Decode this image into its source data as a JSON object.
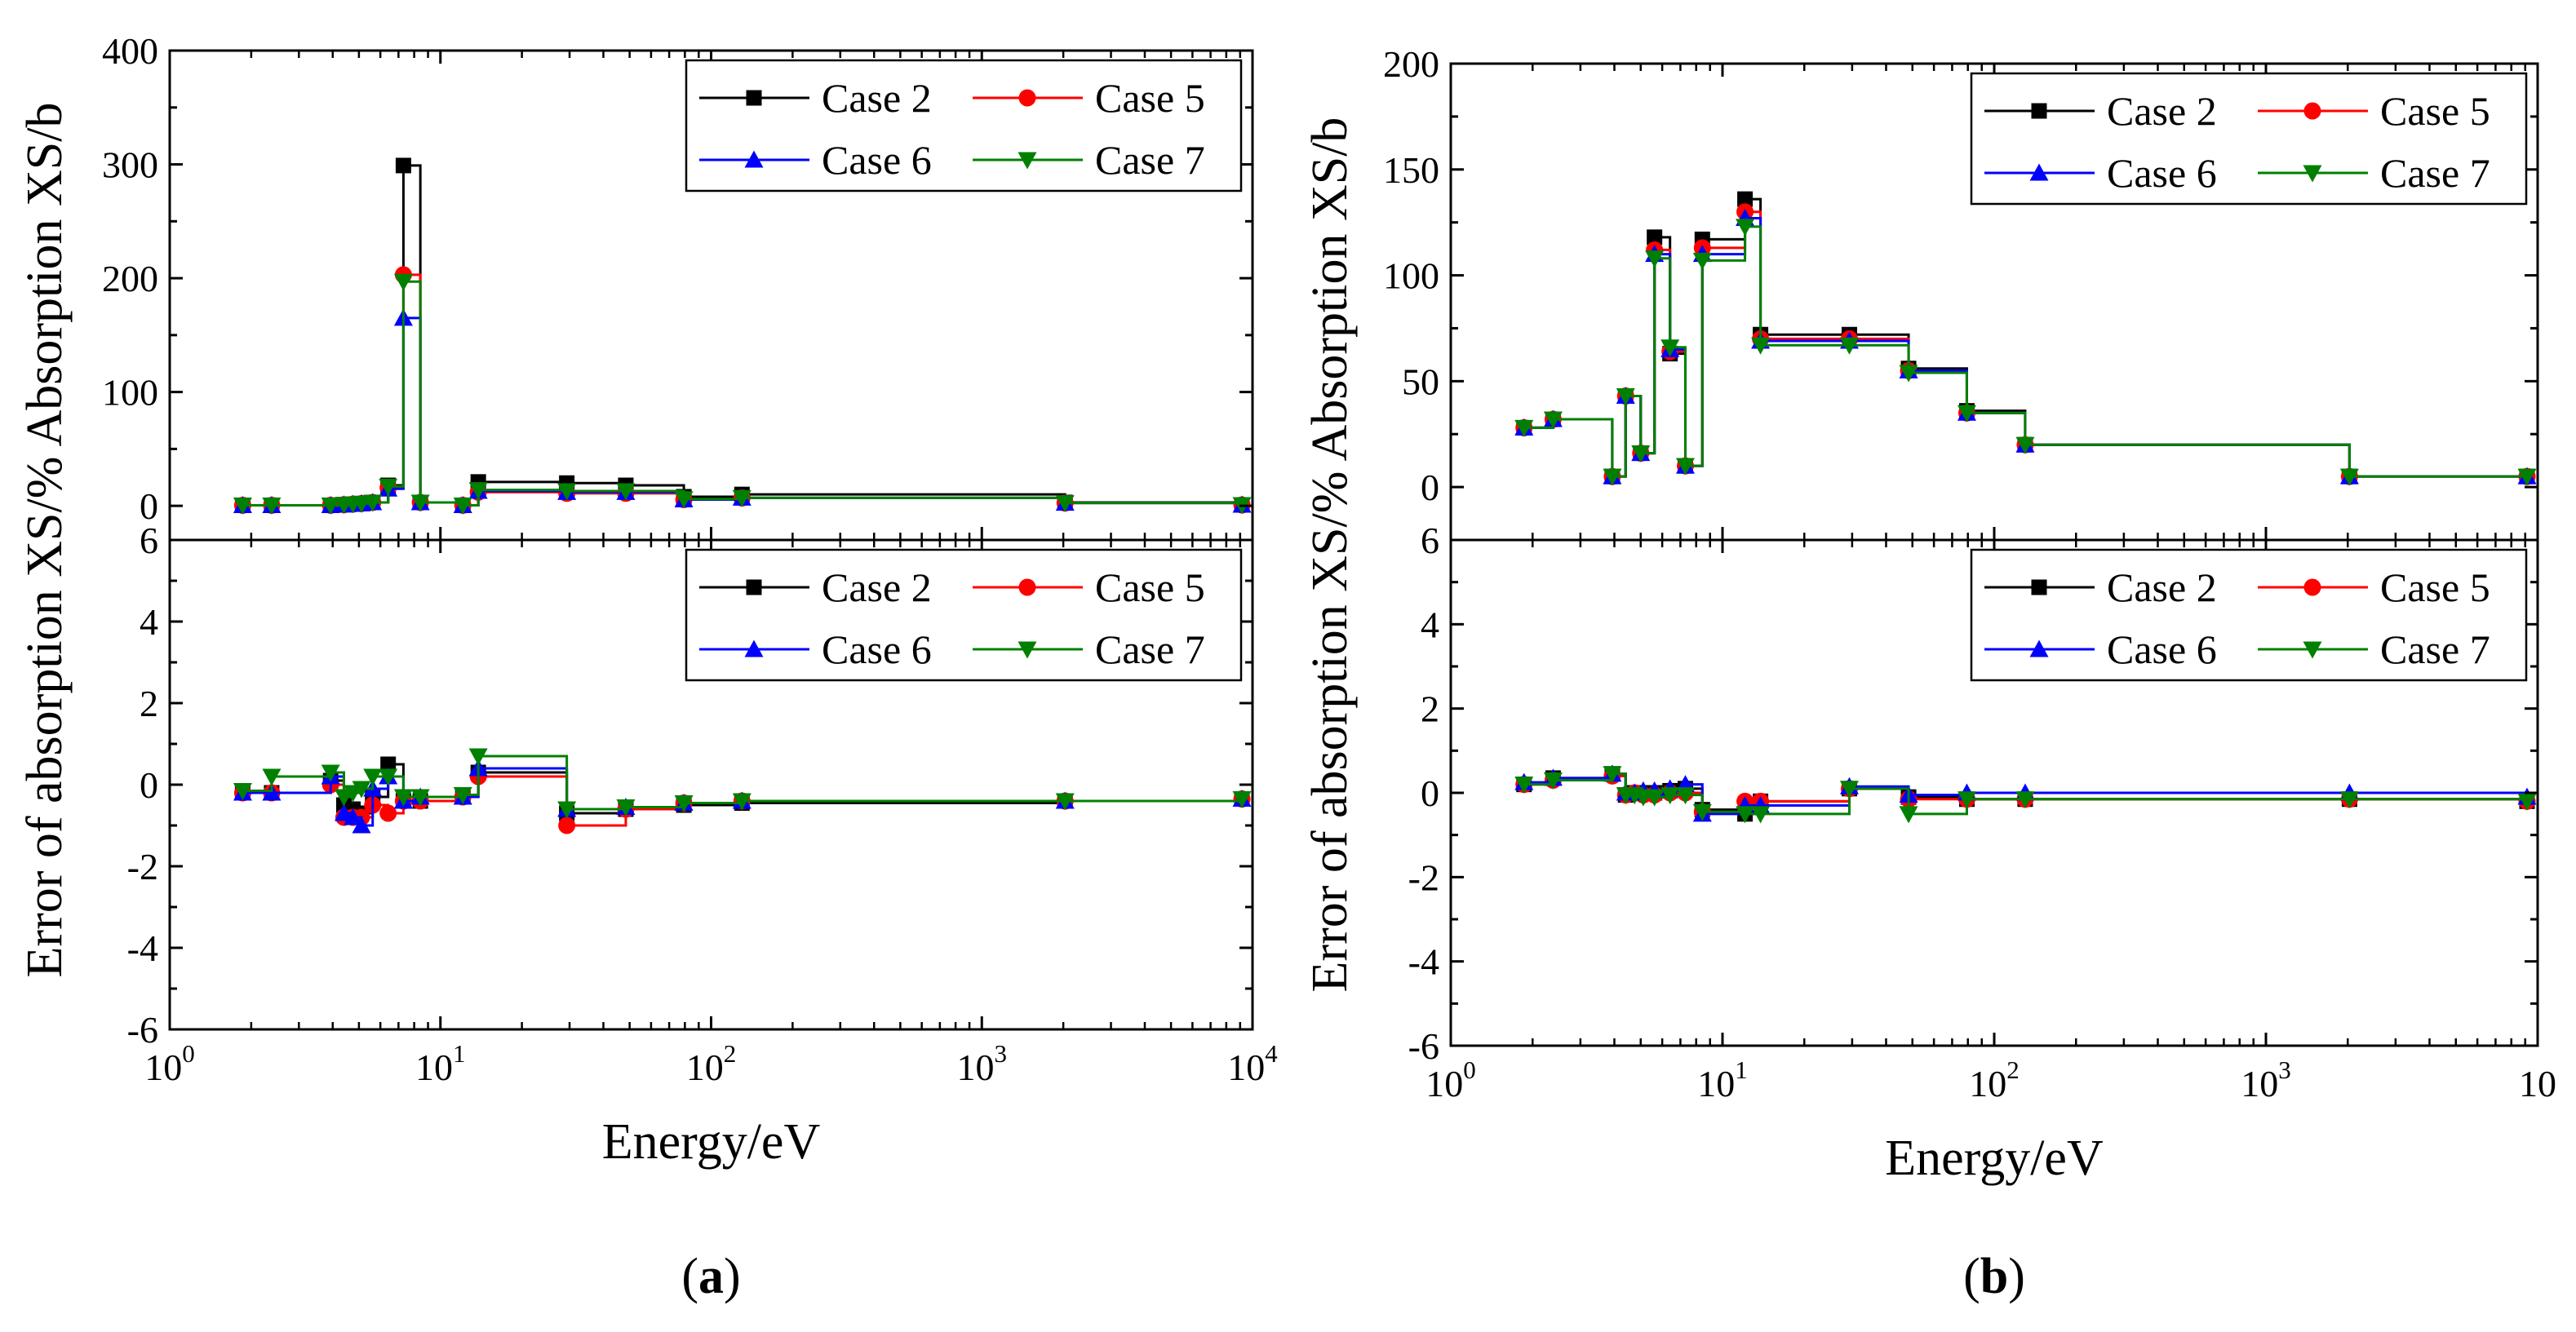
{
  "chart_data": [
    {
      "id": "a",
      "panel_label": "(a)",
      "type": "line",
      "step": "post",
      "xlabel": "Energy/eV",
      "xscale": "log",
      "xlim": [
        1,
        10000
      ],
      "xtick_labels": [
        {
          "base": "10",
          "exp": "0"
        },
        {
          "base": "10",
          "exp": "1"
        },
        {
          "base": "10",
          "exp": "2"
        },
        {
          "base": "10",
          "exp": "3"
        },
        {
          "base": "10",
          "exp": "4"
        }
      ],
      "ylabel": "Error of absorption XS/% Absorption XS/b",
      "subplots": [
        {
          "name": "absorption",
          "ylabel": "Absorption XS/b",
          "ylim": [
            -30,
            400
          ],
          "yticks": [
            0,
            100,
            200,
            300,
            400
          ],
          "legend": "top-right",
          "x": [
            1.86,
            2.38,
            3.93,
            4.4,
            4.75,
            5.11,
            5.62,
            6.41,
            7.3,
            8.43,
            12.1,
            13.8,
            29.3,
            48.4,
            79.3,
            130,
            2030,
            9140
          ],
          "series": [
            {
              "name": "Case 2",
              "values": [
                0.5,
                0.5,
                0.5,
                1.0,
                1.5,
                2.0,
                3.0,
                18.0,
                299.0,
                3.0,
                0.5,
                21.0,
                20.0,
                18.0,
                8.0,
                10.0,
                3.0,
                0.8
              ]
            },
            {
              "name": "Case 5",
              "values": [
                0.5,
                0.5,
                0.5,
                1.0,
                1.5,
                2.0,
                3.0,
                16.0,
                203.0,
                3.0,
                0.5,
                12.0,
                11.0,
                11.0,
                5.5,
                7.0,
                2.5,
                0.8
              ]
            },
            {
              "name": "Case 6",
              "values": [
                0.5,
                0.5,
                0.5,
                1.0,
                1.5,
                2.0,
                3.0,
                15.0,
                165.0,
                3.0,
                0.5,
                13.0,
                12.0,
                12.0,
                5.5,
                7.0,
                2.5,
                0.8
              ]
            },
            {
              "name": "Case 7",
              "values": [
                0.5,
                0.5,
                0.5,
                1.0,
                1.5,
                2.0,
                3.0,
                17.0,
                197.0,
                3.0,
                0.5,
                14.0,
                13.0,
                13.0,
                6.0,
                7.0,
                2.5,
                0.8
              ]
            }
          ]
        },
        {
          "name": "error",
          "ylabel": "Error of absorption XS/%",
          "ylim": [
            -6,
            6
          ],
          "yticks": [
            -6,
            -4,
            -2,
            0,
            2,
            4,
            6
          ],
          "legend": "top-right",
          "x": [
            1.86,
            2.38,
            3.93,
            4.4,
            4.75,
            5.11,
            5.62,
            6.41,
            7.3,
            8.43,
            12.1,
            13.8,
            29.3,
            48.4,
            79.3,
            130,
            2030,
            9140
          ],
          "series": [
            {
              "name": "Case 2",
              "values": [
                -0.2,
                -0.2,
                0.1,
                -0.5,
                -0.6,
                -0.7,
                -0.3,
                0.5,
                -0.4,
                -0.4,
                -0.3,
                0.3,
                -0.7,
                -0.6,
                -0.5,
                -0.45,
                -0.4,
                -0.35
              ]
            },
            {
              "name": "Case 5",
              "values": [
                -0.2,
                -0.2,
                0.0,
                -0.8,
                -0.8,
                -0.8,
                -0.5,
                -0.7,
                -0.4,
                -0.4,
                -0.3,
                0.2,
                -1.0,
                -0.6,
                -0.45,
                -0.4,
                -0.4,
                -0.35
              ]
            },
            {
              "name": "Case 6",
              "values": [
                -0.2,
                -0.2,
                0.2,
                -0.7,
                -0.8,
                -1.0,
                -0.1,
                0.2,
                -0.4,
                -0.3,
                -0.3,
                0.4,
                -0.6,
                -0.55,
                -0.45,
                -0.4,
                -0.4,
                -0.35
              ]
            },
            {
              "name": "Case 7",
              "values": [
                -0.15,
                0.2,
                0.3,
                -0.3,
                -0.2,
                -0.1,
                0.2,
                0.2,
                -0.3,
                -0.3,
                -0.25,
                0.7,
                -0.6,
                -0.55,
                -0.45,
                -0.4,
                -0.4,
                -0.35
              ]
            }
          ]
        }
      ]
    },
    {
      "id": "b",
      "panel_label": "(b)",
      "type": "line",
      "step": "post",
      "xlabel": "Energy/eV",
      "xscale": "log",
      "xlim": [
        1,
        10000
      ],
      "xtick_labels": [
        {
          "base": "10",
          "exp": "0"
        },
        {
          "base": "10",
          "exp": "1"
        },
        {
          "base": "10",
          "exp": "2"
        },
        {
          "base": "10",
          "exp": "3"
        },
        {
          "base": "10",
          "exp": ""
        }
      ],
      "ylabel": "Error of absorption XS/% Absorption XS/b",
      "subplots": [
        {
          "name": "absorption",
          "ylabel": "Absorption XS/b",
          "ylim": [
            -25,
            200
          ],
          "yticks": [
            0,
            50,
            100,
            150,
            200
          ],
          "legend": "top-right",
          "x": [
            1.86,
            2.38,
            3.93,
            4.4,
            5.0,
            5.62,
            6.41,
            7.3,
            8.43,
            12.1,
            13.8,
            29.3,
            48.4,
            79.3,
            130,
            2030,
            9140
          ],
          "series": [
            {
              "name": "Case 2",
              "values": [
                28,
                32,
                5,
                43,
                16,
                118,
                63,
                10,
                117,
                136,
                72,
                72,
                56,
                36,
                20,
                5,
                5
              ]
            },
            {
              "name": "Case 5",
              "values": [
                28,
                32,
                5,
                43,
                16,
                112,
                64,
                10,
                113,
                130,
                70,
                70,
                55,
                35,
                20,
                5,
                5
              ]
            },
            {
              "name": "Case 6",
              "values": [
                28,
                32,
                5,
                43,
                16,
                110,
                65,
                10,
                110,
                127,
                69,
                69,
                55,
                35,
                20,
                5,
                5
              ]
            },
            {
              "name": "Case 7",
              "values": [
                28,
                32,
                5,
                43,
                16,
                108,
                66,
                10,
                107,
                123,
                67,
                67,
                54,
                35,
                20,
                5,
                5
              ]
            }
          ]
        },
        {
          "name": "error",
          "ylabel": "Error of absorption XS/%",
          "ylim": [
            -6,
            6
          ],
          "yticks": [
            -6,
            -4,
            -2,
            0,
            2,
            4,
            6
          ],
          "legend": "top-right",
          "x": [
            1.86,
            2.38,
            3.93,
            4.4,
            4.75,
            5.11,
            5.62,
            6.41,
            7.3,
            8.43,
            12.1,
            13.8,
            29.3,
            48.4,
            79.3,
            130,
            2030,
            9140
          ],
          "series": [
            {
              "name": "Case 2",
              "values": [
                0.2,
                0.35,
                0.45,
                -0.05,
                0.0,
                0.0,
                0.0,
                0.05,
                0.1,
                -0.4,
                -0.5,
                -0.2,
                0.1,
                -0.1,
                -0.15,
                -0.15,
                -0.15,
                -0.2
              ]
            },
            {
              "name": "Case 5",
              "values": [
                0.2,
                0.3,
                0.4,
                -0.05,
                0.0,
                -0.05,
                -0.05,
                0.0,
                0.0,
                -0.45,
                -0.2,
                -0.2,
                0.1,
                -0.15,
                -0.15,
                -0.15,
                -0.15,
                -0.2
              ]
            },
            {
              "name": "Case 6",
              "values": [
                0.25,
                0.35,
                0.45,
                0.0,
                0.0,
                0.05,
                0.05,
                0.1,
                0.2,
                -0.5,
                -0.3,
                -0.3,
                0.15,
                -0.05,
                0.0,
                0.0,
                0.0,
                -0.1
              ]
            },
            {
              "name": "Case 7",
              "values": [
                0.2,
                0.3,
                0.45,
                -0.05,
                -0.05,
                -0.1,
                -0.1,
                -0.05,
                -0.05,
                -0.45,
                -0.5,
                -0.5,
                0.1,
                -0.5,
                -0.15,
                -0.15,
                -0.15,
                -0.2
              ]
            }
          ]
        }
      ]
    }
  ],
  "series_styles": [
    {
      "name": "Case 2",
      "color": "#000000",
      "marker": "square"
    },
    {
      "name": "Case 5",
      "color": "#ff0000",
      "marker": "circle"
    },
    {
      "name": "Case 6",
      "color": "#0000ff",
      "marker": "triangle-up"
    },
    {
      "name": "Case 7",
      "color": "#008000",
      "marker": "triangle-down"
    }
  ]
}
